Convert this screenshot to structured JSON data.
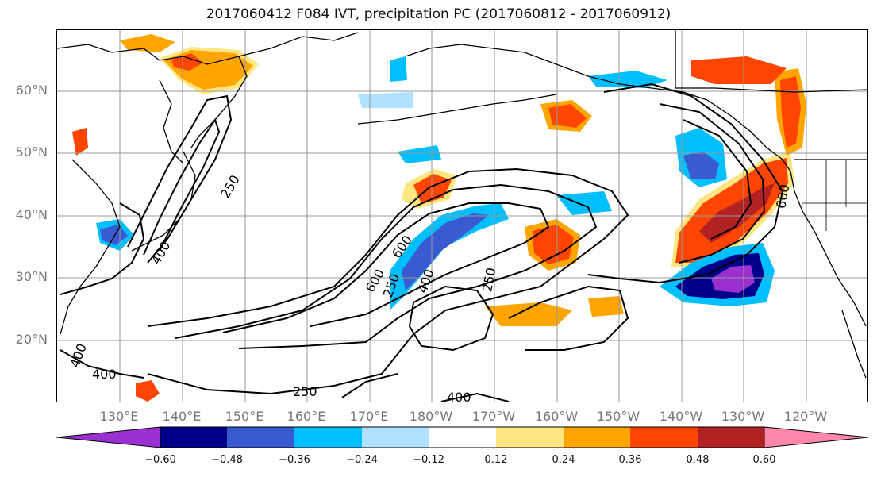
{
  "title": "2017060412 F084 IVT, precipitation PC (2017060812 - 2017060912)",
  "lat_labels": [
    "60°N",
    "50°N",
    "40°N",
    "30°N",
    "20°N"
  ],
  "lon_labels": [
    "130°E",
    "140°E",
    "150°E",
    "160°E",
    "170°E",
    "180°W",
    "170°W",
    "160°W",
    "150°W",
    "140°W",
    "130°W",
    "120°W"
  ],
  "contour_labels": [
    "250",
    "400",
    "600",
    "250",
    "400",
    "600",
    "250",
    "400",
    "600",
    "400",
    "250",
    "400"
  ],
  "colorbar": {
    "ticks": [
      "−0.60",
      "−0.48",
      "−0.36",
      "−0.24",
      "−0.12",
      "0.12",
      "0.24",
      "0.36",
      "0.48",
      "0.60"
    ],
    "colors": [
      "#9b30d0",
      "#00008b",
      "#3a5bd0",
      "#00bfff",
      "#b0e2ff",
      "#ffffff",
      "#ffe680",
      "#ffa500",
      "#ff4500",
      "#b22222",
      "#ff88aa"
    ]
  },
  "colors": {
    "positive_1": "#ffe680",
    "positive_2": "#ffa500",
    "positive_3": "#ff4500",
    "positive_4": "#b22222",
    "negative_1": "#b0e2ff",
    "negative_2": "#00bfff",
    "negative_3": "#3a5bd0",
    "negative_4": "#00008b",
    "negative_5": "#9b30d0"
  }
}
